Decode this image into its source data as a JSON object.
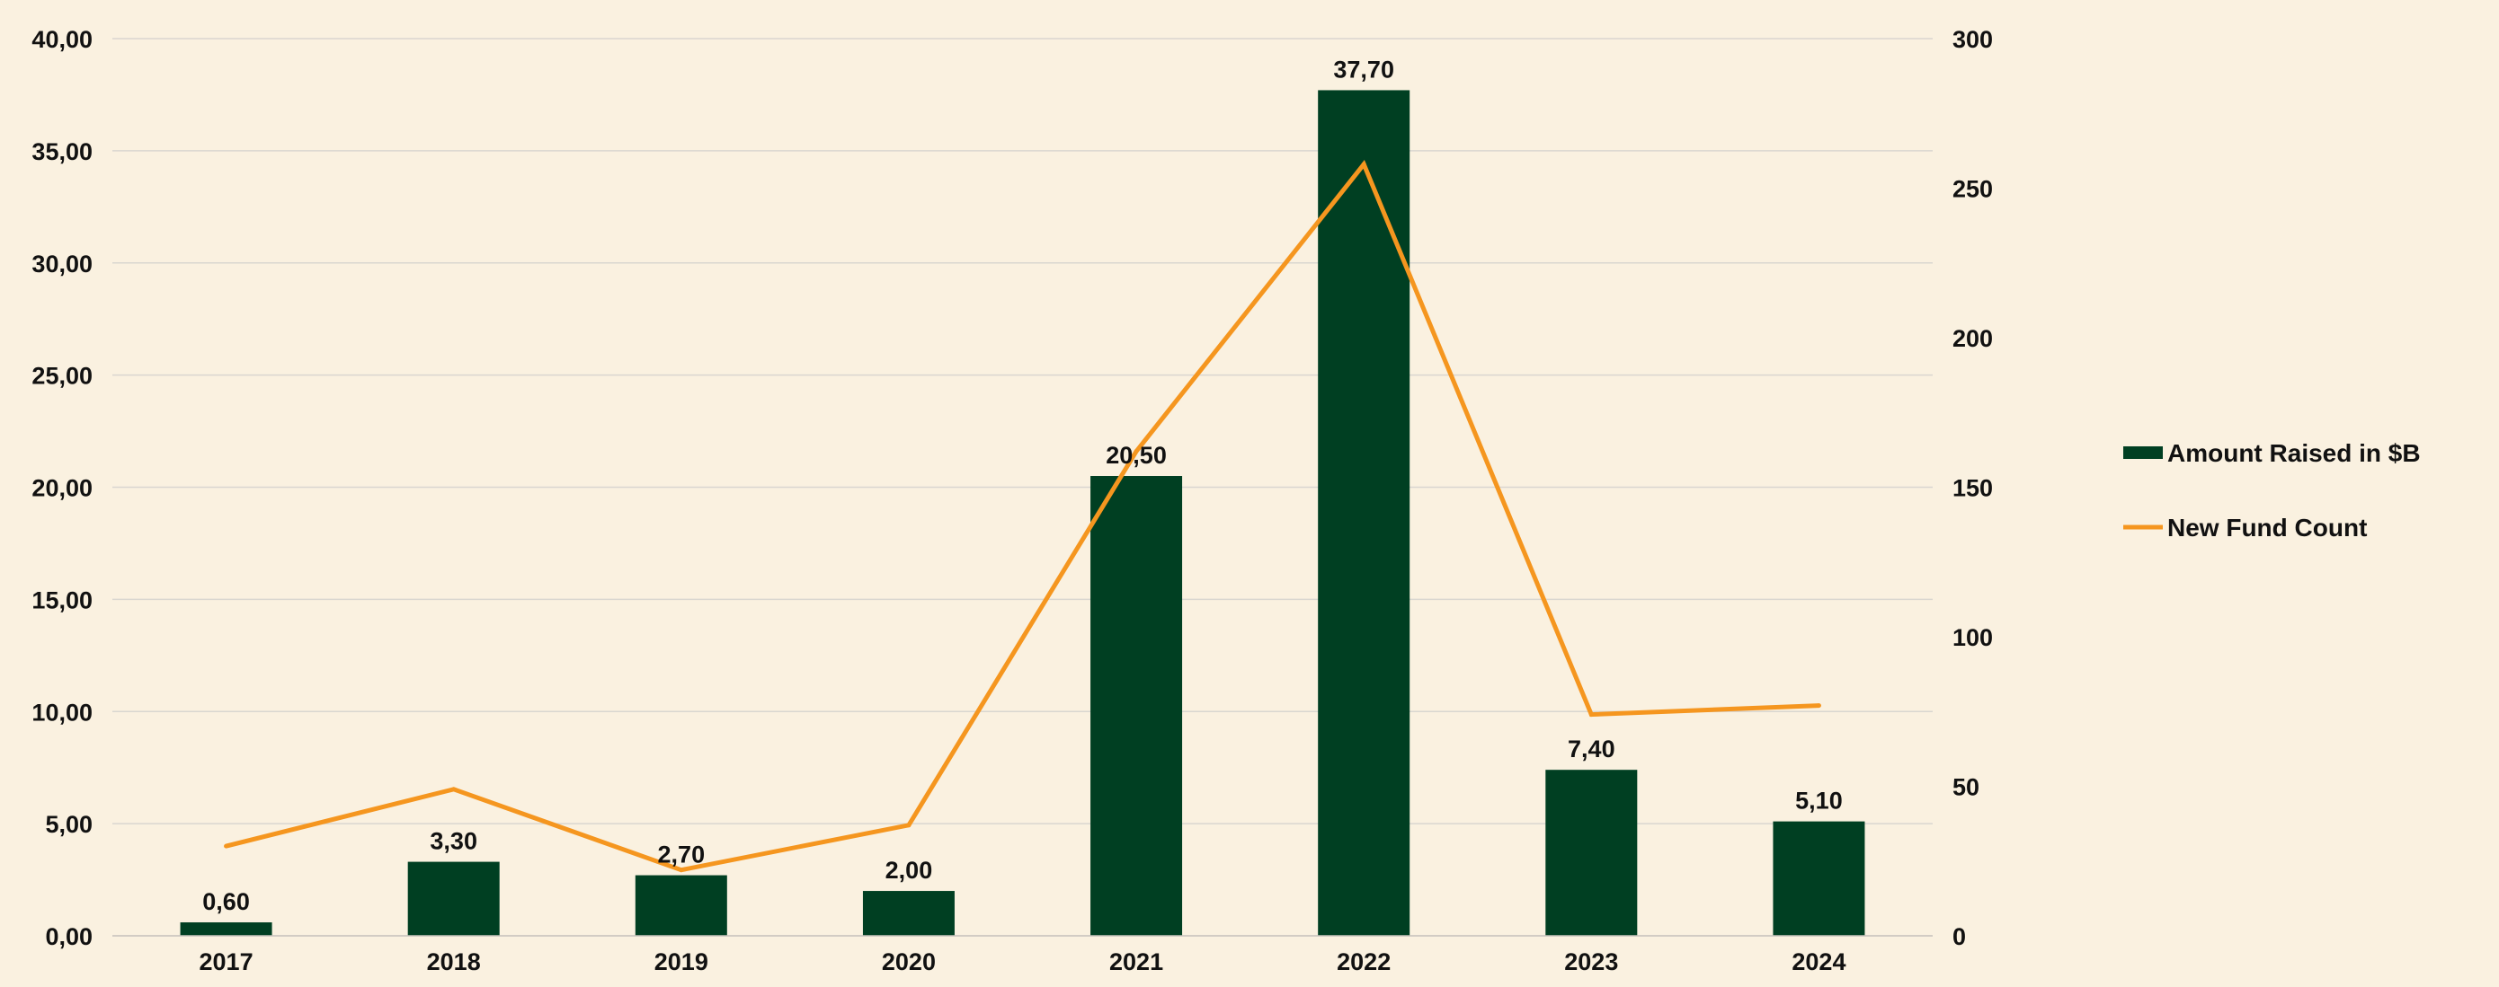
{
  "chart_data": {
    "type": "bar",
    "categories": [
      "2017",
      "2018",
      "2019",
      "2020",
      "2021",
      "2022",
      "2023",
      "2024"
    ],
    "series": [
      {
        "name": "Amount Raised in $B",
        "type": "bar",
        "axis": "left",
        "values": [
          0.6,
          3.3,
          2.7,
          2.0,
          20.5,
          37.7,
          7.4,
          5.1
        ],
        "labels": [
          "0,60",
          "3,30",
          "2,70",
          "2,00",
          "20,50",
          "37,70",
          "7,40",
          "5,10"
        ]
      },
      {
        "name": "New Fund Count",
        "type": "line",
        "axis": "right",
        "values": [
          30,
          49,
          22,
          37,
          162,
          258,
          74,
          77
        ]
      }
    ],
    "y_left": {
      "lim": [
        0,
        40
      ],
      "ticks": [
        0,
        5,
        10,
        15,
        20,
        25,
        30,
        35,
        40
      ],
      "tick_labels": [
        "0,00",
        "5,00",
        "10,00",
        "15,00",
        "20,00",
        "25,00",
        "30,00",
        "35,00",
        "40,00"
      ]
    },
    "y_right": {
      "lim": [
        0,
        300
      ],
      "ticks": [
        0,
        50,
        100,
        150,
        200,
        250,
        300
      ],
      "tick_labels": [
        "0",
        "50",
        "100",
        "150",
        "200",
        "250",
        "300"
      ]
    },
    "title": "",
    "xlabel": "",
    "ylabel": "",
    "grid": true,
    "legend_position": "right",
    "colors": {
      "background": "#faf1e0",
      "bar": "#003f22",
      "line": "#f5961f",
      "grid": "#d9d6d0",
      "text": "#111111"
    }
  }
}
